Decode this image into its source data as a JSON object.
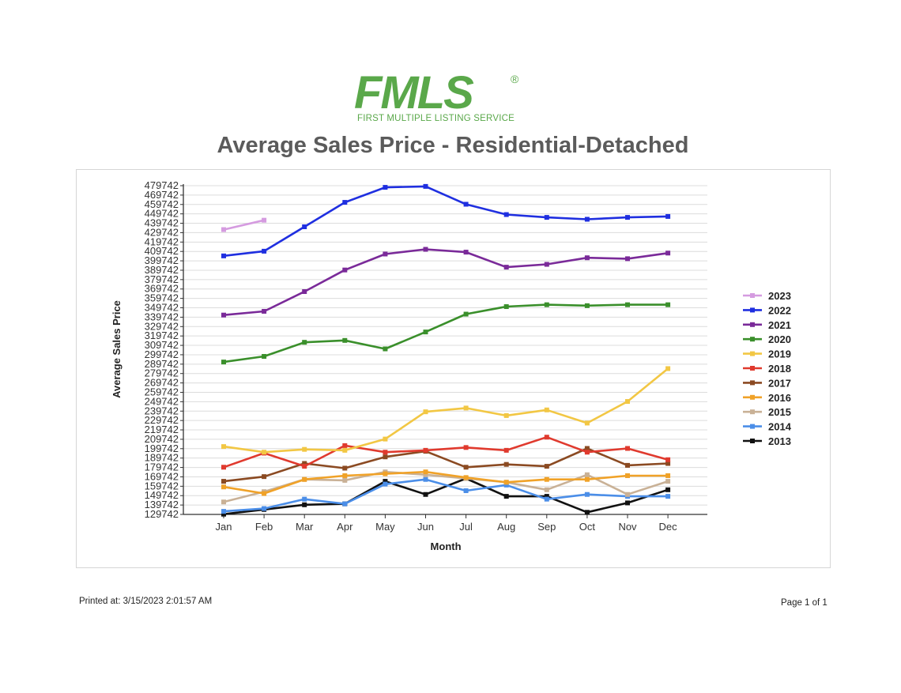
{
  "logo": {
    "main_text": "FMLS",
    "registered": "®",
    "subtitle": "FIRST MULTIPLE LISTING SERVICE"
  },
  "page_title": "Average Sales Price - Residential-Detached",
  "footer": {
    "printed_at": "Printed at:  3/15/2023 2:01:57 AM",
    "page_info": "Page 1 of 1"
  },
  "chart_data": {
    "type": "line",
    "title": "",
    "xlabel": "Month",
    "ylabel": "Average Sales Price",
    "categories": [
      "Jan",
      "Feb",
      "Mar",
      "Apr",
      "May",
      "Jun",
      "Jul",
      "Aug",
      "Sep",
      "Oct",
      "Nov",
      "Dec"
    ],
    "ylim": [
      129742,
      479742
    ],
    "ytick_step": 10000,
    "yticks": [
      129742,
      139742,
      149742,
      159742,
      169742,
      179742,
      189742,
      199742,
      209742,
      219742,
      229742,
      239742,
      249742,
      259742,
      269742,
      279742,
      289742,
      299742,
      309742,
      319742,
      329742,
      339742,
      349742,
      359742,
      369742,
      379742,
      389742,
      399742,
      409742,
      419742,
      429742,
      439742,
      449742,
      459742,
      469742,
      479742
    ],
    "grid": true,
    "legend_position": "right",
    "series": [
      {
        "name": "2023",
        "color": "#d59be0",
        "values": [
          433000,
          443000,
          null,
          null,
          null,
          null,
          null,
          null,
          null,
          null,
          null,
          null
        ]
      },
      {
        "name": "2022",
        "color": "#1f2fe0",
        "values": [
          405000,
          410000,
          436000,
          462000,
          478000,
          479000,
          460000,
          449000,
          446000,
          444000,
          446000,
          447000
        ]
      },
      {
        "name": "2021",
        "color": "#7a2a99",
        "values": [
          342000,
          346000,
          367000,
          390000,
          407000,
          412000,
          409000,
          393000,
          396000,
          403000,
          402000,
          408000
        ]
      },
      {
        "name": "2020",
        "color": "#3a8f2b",
        "values": [
          292000,
          298000,
          313000,
          315000,
          306000,
          324000,
          343000,
          351000,
          353000,
          352000,
          353000,
          353000
        ]
      },
      {
        "name": "2019",
        "color": "#f2c744",
        "values": [
          202000,
          196000,
          199000,
          198000,
          210000,
          239000,
          243000,
          235000,
          241000,
          227000,
          250000,
          285000
        ]
      },
      {
        "name": "2018",
        "color": "#e03a2e",
        "values": [
          180000,
          195000,
          181000,
          203000,
          196000,
          198000,
          201000,
          198000,
          212000,
          196000,
          200000,
          188000
        ]
      },
      {
        "name": "2017",
        "color": "#8b4a22",
        "values": [
          165000,
          170000,
          184000,
          179000,
          191000,
          197000,
          180000,
          183000,
          181000,
          200000,
          182000,
          184000
        ]
      },
      {
        "name": "2016",
        "color": "#f0a228",
        "values": [
          159000,
          152000,
          167000,
          171000,
          173000,
          175000,
          169000,
          164000,
          167000,
          167000,
          171000,
          171000
        ]
      },
      {
        "name": "2015",
        "color": "#c9b196",
        "values": [
          143000,
          154000,
          167000,
          166000,
          175000,
          172000,
          168000,
          164000,
          156000,
          172000,
          151000,
          165000
        ]
      },
      {
        "name": "2014",
        "color": "#4b8ee8",
        "values": [
          133000,
          136000,
          146000,
          141000,
          162000,
          167000,
          155000,
          161000,
          146000,
          151000,
          149000,
          149000
        ]
      },
      {
        "name": "2013",
        "color": "#111111",
        "values": [
          130000,
          135000,
          140000,
          141000,
          165000,
          151000,
          168000,
          149000,
          149000,
          132000,
          142000,
          156000
        ]
      }
    ]
  }
}
